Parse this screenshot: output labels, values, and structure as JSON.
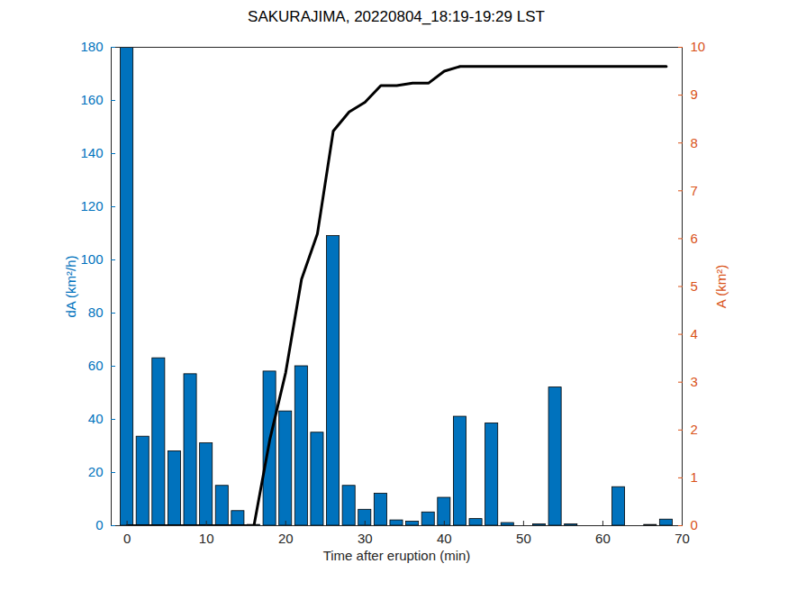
{
  "chart_data": {
    "type": "bar",
    "title": "SAKURAJIMA, 20220804_18:19-19:29 LST",
    "x_label": "Time after eruption (min)",
    "y_label": "dA (km²/h)",
    "y2_label": "A (km²)",
    "xlim": [
      -2,
      70
    ],
    "xticks": [
      0,
      10,
      20,
      30,
      40,
      50,
      60,
      70
    ],
    "ylim": [
      0,
      180
    ],
    "yticks": [
      0,
      20,
      40,
      60,
      80,
      100,
      120,
      140,
      160,
      180
    ],
    "y2lim": [
      0,
      10
    ],
    "y2ticks": [
      0,
      1,
      2,
      3,
      4,
      5,
      6,
      7,
      8,
      9,
      10
    ],
    "grid": false,
    "x": [
      0,
      2,
      4,
      6,
      8,
      10,
      12,
      14,
      16,
      18,
      20,
      22,
      24,
      26,
      28,
      30,
      32,
      34,
      36,
      38,
      40,
      42,
      44,
      46,
      48,
      50,
      52,
      54,
      56,
      58,
      60,
      62,
      64,
      66,
      68
    ],
    "series": [
      {
        "type": "bar",
        "color": "#0072BD",
        "values": [
          180,
          33.5,
          63,
          28,
          57,
          31,
          15,
          5.5,
          0.3,
          58,
          43,
          60,
          35,
          109,
          15,
          6,
          12,
          2,
          1.5,
          5,
          10.5,
          41,
          2.5,
          38.5,
          1,
          0,
          0.5,
          52,
          0.5,
          0,
          0,
          14.5,
          0,
          0.3,
          2.3
        ]
      },
      {
        "type": "line",
        "axis": "y2",
        "color": "#000000",
        "values": [
          0,
          0,
          0,
          0,
          0,
          0,
          0,
          0,
          0,
          1.8,
          3.2,
          5.15,
          6.1,
          8.25,
          8.65,
          8.85,
          9.2,
          9.2,
          9.25,
          9.25,
          9.5,
          9.6,
          9.6,
          9.6,
          9.6,
          9.6,
          9.6,
          9.6,
          9.6,
          9.6,
          9.6,
          9.6,
          9.6,
          9.6,
          9.6
        ]
      }
    ]
  }
}
